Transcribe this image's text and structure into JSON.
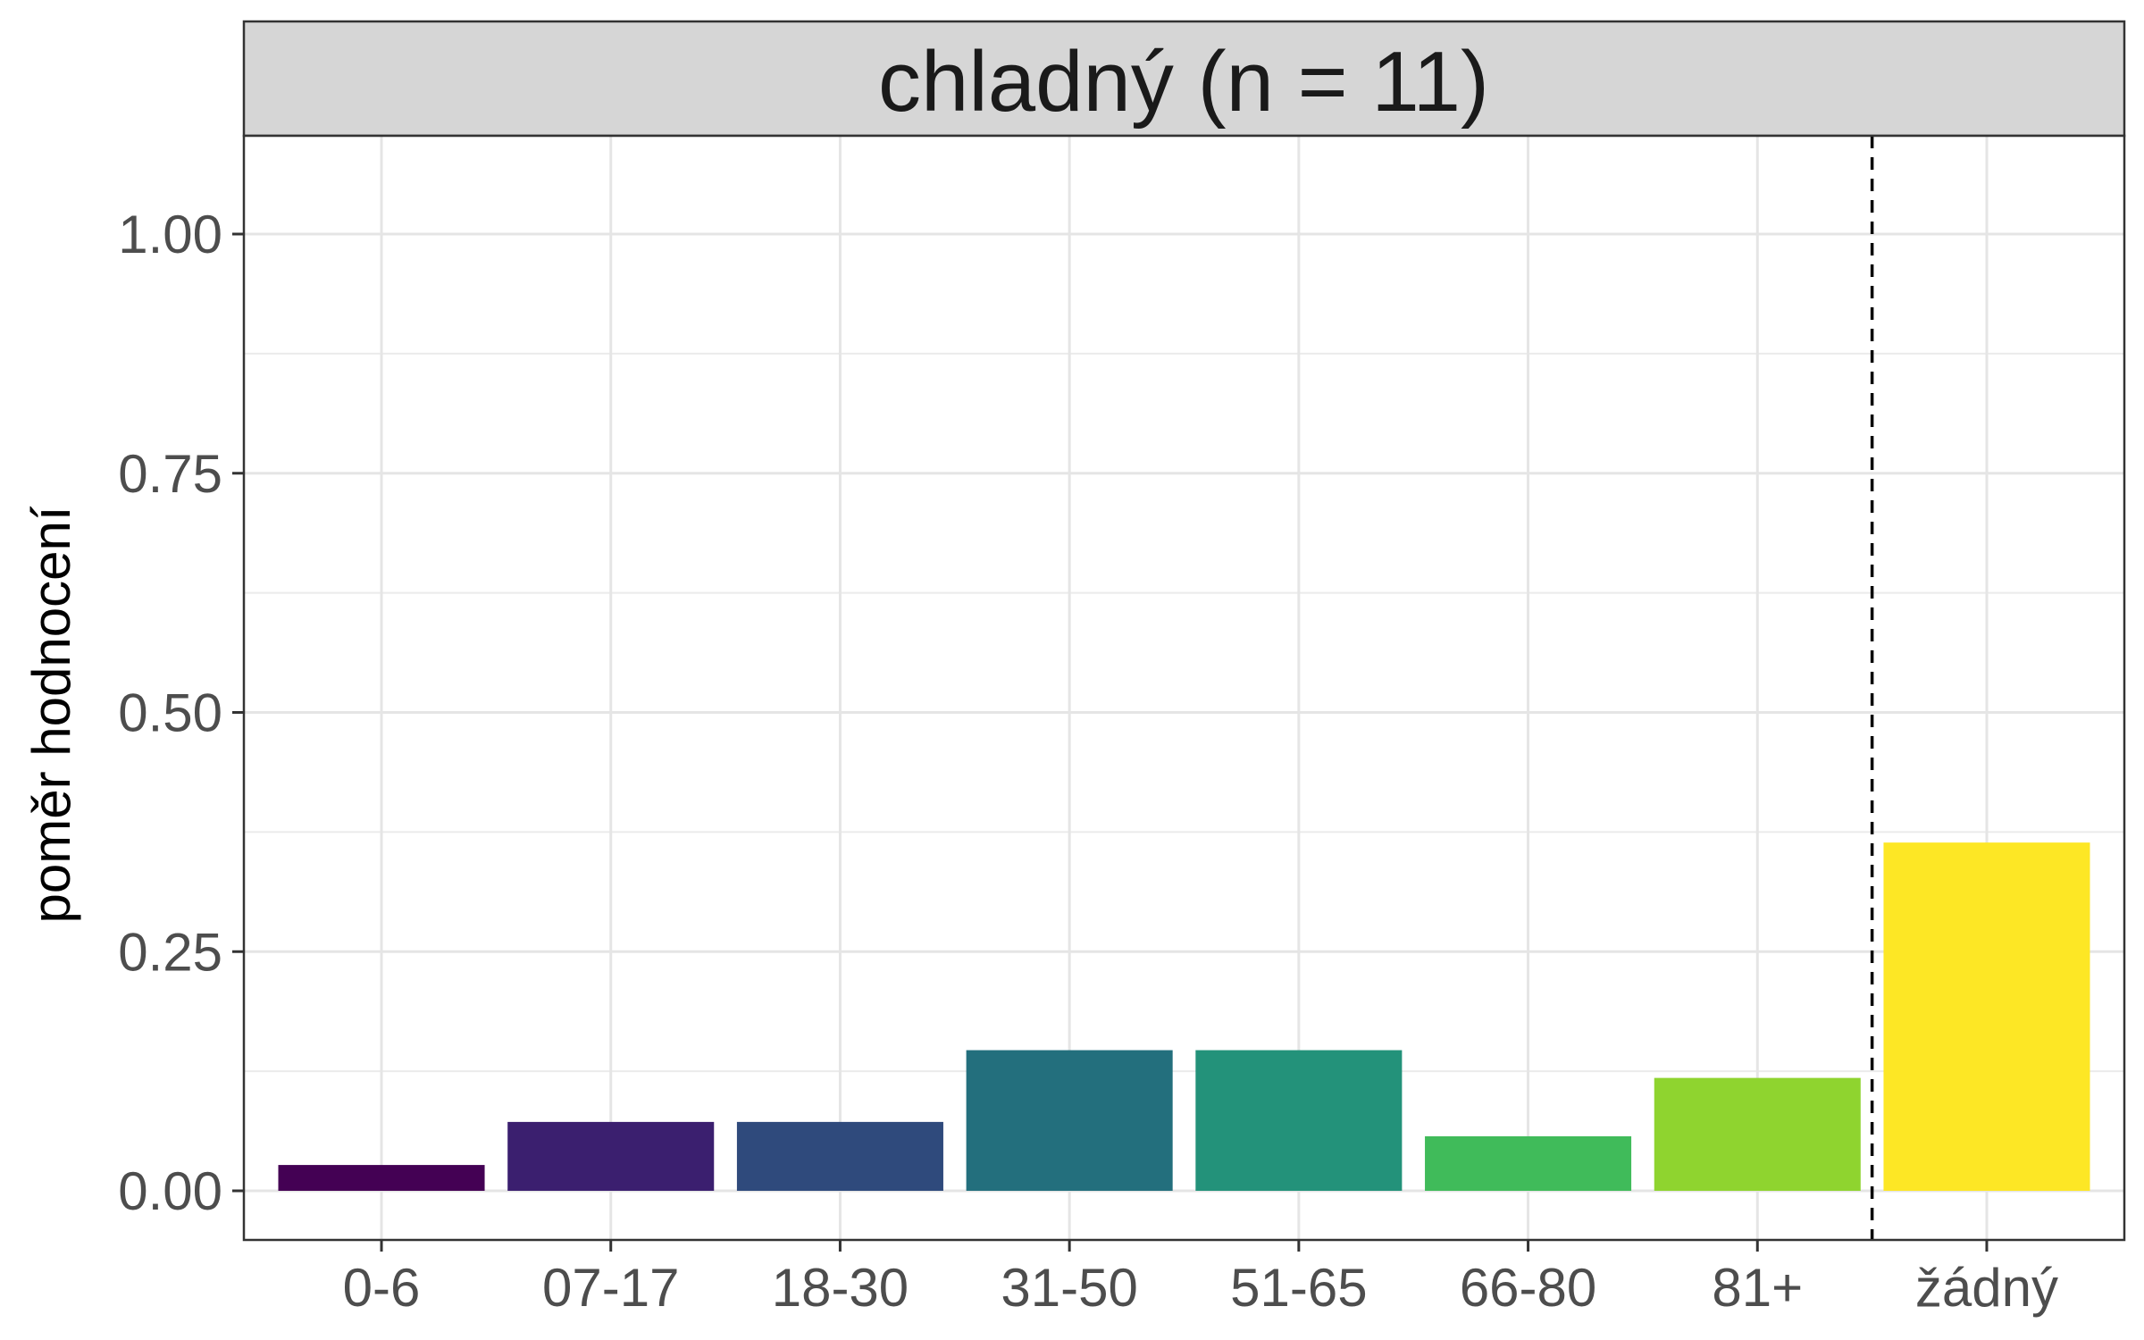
{
  "chart_data": {
    "type": "bar",
    "facet_title": "chladný (n = 11)",
    "xlabel": "",
    "ylabel": "poměr hodnocení",
    "ylim": [
      -0.04,
      1.1
    ],
    "yticks": [
      0.0,
      0.25,
      0.5,
      0.75,
      1.0
    ],
    "ytick_labels": [
      "0.00",
      "0.25",
      "0.50",
      "0.75",
      "1.00"
    ],
    "grid": true,
    "separator": {
      "style": "dashed",
      "between": [
        "81+",
        "žádný"
      ]
    },
    "categories": [
      "0-6",
      "07-17",
      "18-30",
      "31-50",
      "51-65",
      "66-80",
      "81+",
      "žádný"
    ],
    "values": [
      0.027,
      0.072,
      0.072,
      0.147,
      0.147,
      0.057,
      0.118,
      0.364
    ],
    "colors": [
      "#440154",
      "#3b1f6f",
      "#2f4a7c",
      "#236f7d",
      "#23927a",
      "#40bb5a",
      "#8fd42f",
      "#fde725"
    ]
  }
}
